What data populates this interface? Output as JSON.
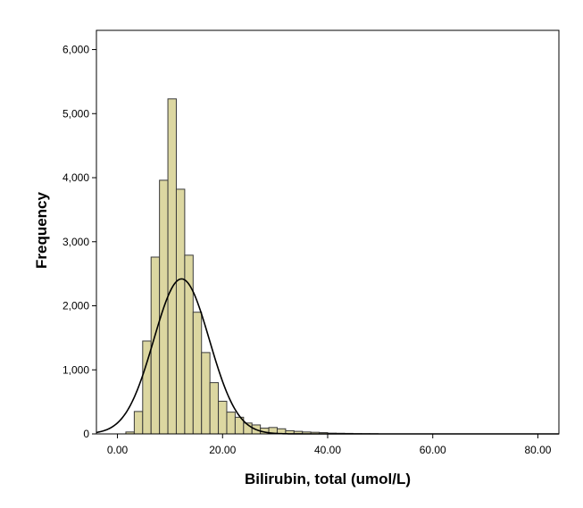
{
  "chart_data": {
    "type": "bar",
    "subtype": "histogram",
    "title": "",
    "xlabel": "Bilirubin, total (umol/L)",
    "ylabel": "Frequency",
    "xlim": [
      -4,
      84
    ],
    "ylim": [
      0,
      6300
    ],
    "grid": false,
    "bin_width": 1.6,
    "x_ticks": [
      0,
      20,
      40,
      60,
      80
    ],
    "x_tick_labels": [
      "0.00",
      "20.00",
      "40.00",
      "60.00",
      "80.00"
    ],
    "y_ticks": [
      0,
      1000,
      2000,
      3000,
      4000,
      5000,
      6000
    ],
    "y_tick_labels": [
      "0",
      "1,000",
      "2,000",
      "3,000",
      "4,000",
      "5,000",
      "6,000"
    ],
    "bin_starts": [
      1.6,
      3.2,
      4.8,
      6.4,
      8.0,
      9.6,
      11.2,
      12.8,
      14.4,
      16.0,
      17.6,
      19.2,
      20.8,
      22.4,
      24.0,
      25.6,
      27.2,
      28.8,
      30.4,
      32.0,
      33.6,
      35.2,
      36.8,
      38.4,
      40.0,
      41.6,
      43.2,
      44.8,
      46.4,
      48.0
    ],
    "values": [
      30,
      350,
      1450,
      2760,
      3960,
      5230,
      3820,
      2790,
      1900,
      1270,
      800,
      510,
      340,
      260,
      170,
      140,
      90,
      100,
      80,
      50,
      40,
      30,
      25,
      20,
      12,
      10,
      8,
      5,
      4,
      3
    ],
    "bar_fill": "#dcd7a1",
    "bar_stroke": "#3a3a3a",
    "curve": {
      "type": "normal",
      "mean": 12.2,
      "sd": 5.3,
      "peak": 2420,
      "color": "#000000"
    }
  }
}
